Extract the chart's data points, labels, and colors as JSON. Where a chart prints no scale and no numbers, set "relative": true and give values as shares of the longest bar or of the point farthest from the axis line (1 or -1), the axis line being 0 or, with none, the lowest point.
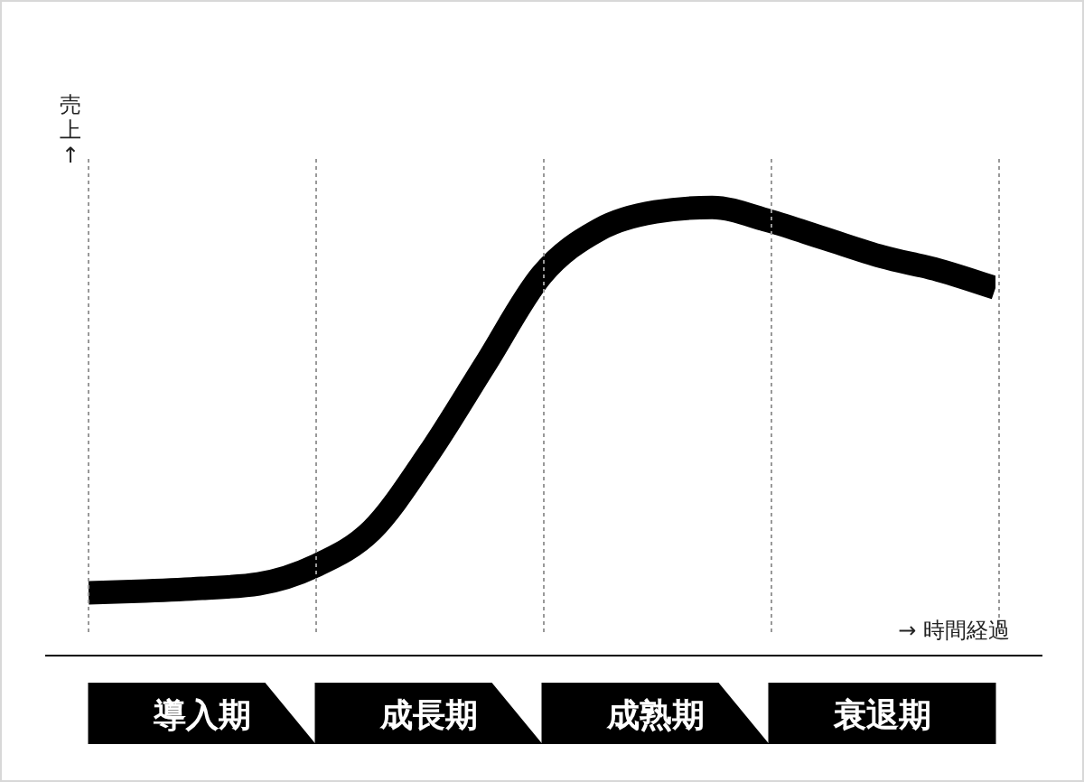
{
  "chart_data": {
    "type": "line",
    "relative": true,
    "categories": [
      null,
      null,
      "導入期",
      null,
      null,
      null,
      "成長期",
      null,
      null,
      null,
      "成熟期",
      null,
      null,
      null,
      "衰退期",
      null,
      null
    ],
    "series": [
      {
        "color": "#000000",
        "values": [
          0.14,
          0.144,
          0.15,
          0.16,
          0.2,
          0.28,
          0.45,
          0.65,
          0.85,
          0.95,
          0.99,
          1,
          0.97,
          0.93,
          0.89,
          0.86,
          0.82
        ]
      }
    ],
    "xlabel": "→ 時間経過",
    "ylabel": "売上↑",
    "grid": "x",
    "marker": "none",
    "line_style": "solid"
  }
}
